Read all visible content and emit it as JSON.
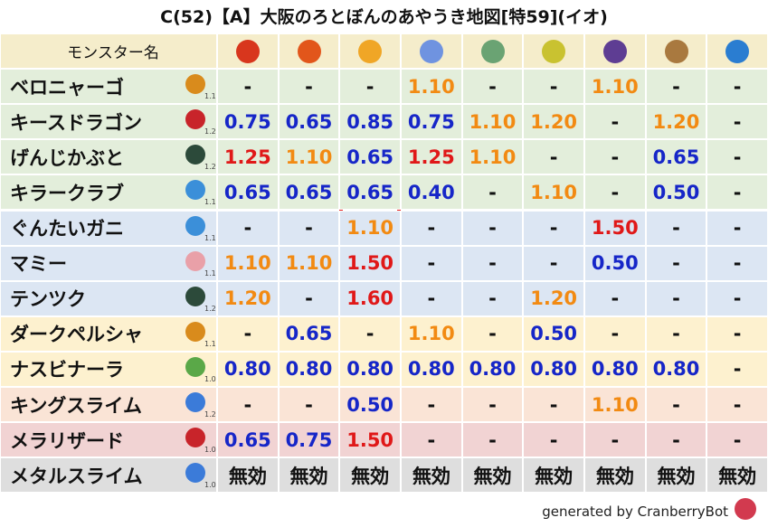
{
  "header": {
    "title": "C(52)【A】大阪のろとぼんのあやうき地図[特59](イオ)",
    "name_column": "モンスター名"
  },
  "table": {
    "rows": [
      {
        "name": "ベロニャーゴ",
        "level": "1.1",
        "cells": [
          "-",
          "-",
          "-",
          "1.10",
          "-",
          "-",
          "1.10",
          "-",
          "-"
        ]
      },
      {
        "name": "キースドラゴン",
        "level": "1.2",
        "cells": [
          "0.75",
          "0.65",
          "0.85",
          "0.75",
          "1.10",
          "1.20",
          "-",
          "1.20",
          "-"
        ]
      },
      {
        "name": "げんじかぶと",
        "level": "1.2",
        "cells": [
          "1.25",
          "1.10",
          "0.65",
          "1.25",
          "1.10",
          "-",
          "-",
          "0.65",
          "-"
        ]
      },
      {
        "name": "キラークラブ",
        "level": "1.1",
        "cells": [
          "0.65",
          "0.65",
          "0.65",
          "0.40",
          "-",
          "1.10",
          "-",
          "0.50",
          "-"
        ]
      },
      {
        "name": "ぐんたいガニ",
        "level": "1.1",
        "cells": [
          "-",
          "-",
          "1.10",
          "-",
          "-",
          "-",
          "1.50",
          "-",
          "-"
        ]
      },
      {
        "name": "マミー",
        "level": "1.1",
        "cells": [
          "1.10",
          "1.10",
          "1.50",
          "-",
          "-",
          "-",
          "0.50",
          "-",
          "-"
        ]
      },
      {
        "name": "テンツク",
        "level": "1.2",
        "cells": [
          "1.20",
          "-",
          "1.60",
          "-",
          "-",
          "1.20",
          "-",
          "-",
          "-"
        ]
      },
      {
        "name": "ダークペルシャ",
        "level": "1.1",
        "cells": [
          "-",
          "0.65",
          "-",
          "1.10",
          "-",
          "0.50",
          "-",
          "-",
          "-"
        ]
      },
      {
        "name": "ナスビナーラ",
        "level": "1.0",
        "cells": [
          "0.80",
          "0.80",
          "0.80",
          "0.80",
          "0.80",
          "0.80",
          "0.80",
          "0.80",
          "-"
        ]
      },
      {
        "name": "キングスライム",
        "level": "1.2",
        "cells": [
          "-",
          "-",
          "0.50",
          "-",
          "-",
          "-",
          "1.10",
          "-",
          "-"
        ]
      },
      {
        "name": "メラリザード",
        "level": "1.0",
        "cells": [
          "0.65",
          "0.75",
          "1.50",
          "-",
          "-",
          "-",
          "-",
          "-",
          "-"
        ]
      },
      {
        "name": "メタルスライム",
        "level": "1.0",
        "cells": [
          "無効",
          "無効",
          "無効",
          "無効",
          "無効",
          "無効",
          "無効",
          "無効",
          "無効"
        ]
      }
    ]
  },
  "footer": {
    "credit": "generated by CranberryBot"
  }
}
